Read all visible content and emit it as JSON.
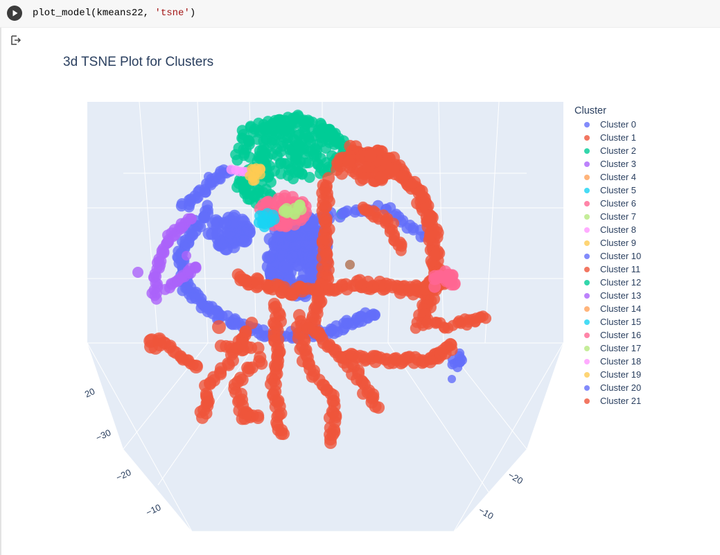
{
  "cell": {
    "code_prefix": "plot_model(kmeans22, ",
    "code_string": "'tsne'",
    "code_suffix": ")"
  },
  "plot": {
    "title": "3d TSNE Plot for Clusters",
    "background": "#e5ecf6",
    "axis_ticks_left": [
      "20",
      "−30",
      "−20",
      "−10"
    ],
    "axis_ticks_right": [
      "−20",
      "−10"
    ]
  },
  "legend": {
    "title": "Cluster",
    "items": [
      {
        "label": "Cluster 0",
        "color": "#636efa"
      },
      {
        "label": "Cluster 1",
        "color": "#ef553b"
      },
      {
        "label": "Cluster 2",
        "color": "#00cc96"
      },
      {
        "label": "Cluster 3",
        "color": "#ab63fa"
      },
      {
        "label": "Cluster 4",
        "color": "#ffa15a"
      },
      {
        "label": "Cluster 5",
        "color": "#19d3f3"
      },
      {
        "label": "Cluster 6",
        "color": "#ff6692"
      },
      {
        "label": "Cluster 7",
        "color": "#b6e880"
      },
      {
        "label": "Cluster 8",
        "color": "#ff97ff"
      },
      {
        "label": "Cluster 9",
        "color": "#fecb52"
      },
      {
        "label": "Cluster 10",
        "color": "#636efa"
      },
      {
        "label": "Cluster 11",
        "color": "#ef553b"
      },
      {
        "label": "Cluster 12",
        "color": "#00cc96"
      },
      {
        "label": "Cluster 13",
        "color": "#ab63fa"
      },
      {
        "label": "Cluster 14",
        "color": "#ffa15a"
      },
      {
        "label": "Cluster 15",
        "color": "#19d3f3"
      },
      {
        "label": "Cluster 16",
        "color": "#ff6692"
      },
      {
        "label": "Cluster 17",
        "color": "#b6e880"
      },
      {
        "label": "Cluster 18",
        "color": "#ff97ff"
      },
      {
        "label": "Cluster 19",
        "color": "#fecb52"
      },
      {
        "label": "Cluster 20",
        "color": "#636efa"
      },
      {
        "label": "Cluster 21",
        "color": "#ef553b"
      }
    ]
  },
  "chart_data": {
    "type": "scatter",
    "title": "3d TSNE Plot for Clusters",
    "legend_title": "Cluster",
    "legend_placement": "right",
    "series": [
      {
        "name": "Cluster 0"
      },
      {
        "name": "Cluster 1"
      },
      {
        "name": "Cluster 2"
      },
      {
        "name": "Cluster 3"
      },
      {
        "name": "Cluster 4"
      },
      {
        "name": "Cluster 5"
      },
      {
        "name": "Cluster 6"
      },
      {
        "name": "Cluster 7"
      },
      {
        "name": "Cluster 8"
      },
      {
        "name": "Cluster 9"
      },
      {
        "name": "Cluster 10"
      },
      {
        "name": "Cluster 11"
      },
      {
        "name": "Cluster 12"
      },
      {
        "name": "Cluster 13"
      },
      {
        "name": "Cluster 14"
      },
      {
        "name": "Cluster 15"
      },
      {
        "name": "Cluster 16"
      },
      {
        "name": "Cluster 17"
      },
      {
        "name": "Cluster 18"
      },
      {
        "name": "Cluster 19"
      },
      {
        "name": "Cluster 20"
      },
      {
        "name": "Cluster 21"
      }
    ],
    "axis_tick_labels": [
      "20",
      "−30",
      "−20",
      "−10",
      "−20",
      "−10"
    ],
    "grid": true
  }
}
